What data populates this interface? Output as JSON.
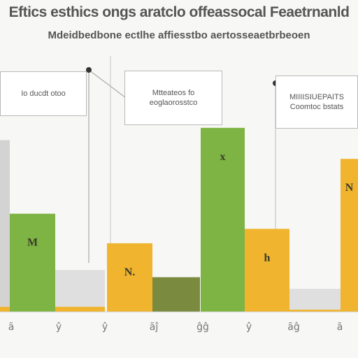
{
  "title": "Eftics esthics ongs aratclo offeassocal Feaetrnanld",
  "subtitle": "Mdeidbedbone ectlhe affiesstbo aertosseaetbrbeoen",
  "callouts": [
    {
      "id": "c1",
      "lines": [
        "Io ducdt otoo"
      ]
    },
    {
      "id": "c2",
      "lines": [
        "Mtteateos fo",
        "eoglaorosstco"
      ]
    },
    {
      "id": "c3",
      "lines": [
        "MIIIISIUEPAITS",
        "Coomtoc bstats"
      ]
    }
  ],
  "chart_data": {
    "type": "bar",
    "title": "Eftics esthics ongs aratclo offeassocal Feaetrnanld",
    "subtitle": "Mdeidbedbone ectlhe affiesstbo aertosseaetbrbeoen",
    "xlabel": "",
    "ylabel": "",
    "ylim": [
      0,
      260
    ],
    "grid": false,
    "legend": "none",
    "categories": [
      "a",
      "b",
      "c",
      "d",
      "e",
      "f",
      "g",
      "h"
    ],
    "tick_labels": [
      "ã",
      "ŷ",
      "ŷ",
      "ãĵ",
      "ĝĝ",
      "ŷ",
      "ãĝ",
      "ã"
    ],
    "colors": {
      "gray": "#d3d3d3",
      "green": "#7db443",
      "yellow": "#f0b42e",
      "olive": "#7a8a3f",
      "light": "#dfdfdf"
    },
    "bars": [
      {
        "category": "a",
        "value": 238,
        "color": "gray",
        "label": ""
      },
      {
        "category": "a",
        "value": 7,
        "color": "yellow",
        "label": ""
      },
      {
        "category": "b",
        "value": 136,
        "color": "green",
        "label": "M"
      },
      {
        "category": "c",
        "value": 58,
        "color": "light",
        "label": ""
      },
      {
        "category": "c",
        "value": 7,
        "color": "yellow",
        "label": ""
      },
      {
        "category": "d",
        "value": 95,
        "color": "yellow",
        "label": "N."
      },
      {
        "category": "e",
        "value": 48,
        "color": "olive",
        "label": ""
      },
      {
        "category": "f",
        "value": 255,
        "color": "green",
        "label": "x"
      },
      {
        "category": "g",
        "value": 115,
        "color": "yellow",
        "label": "h"
      },
      {
        "category": "h",
        "value": 32,
        "color": "light",
        "label": ""
      },
      {
        "category": "h",
        "value": 3,
        "color": "yellow",
        "label": ""
      },
      {
        "category": "i",
        "value": 212,
        "color": "yellow",
        "label": "N"
      }
    ]
  }
}
